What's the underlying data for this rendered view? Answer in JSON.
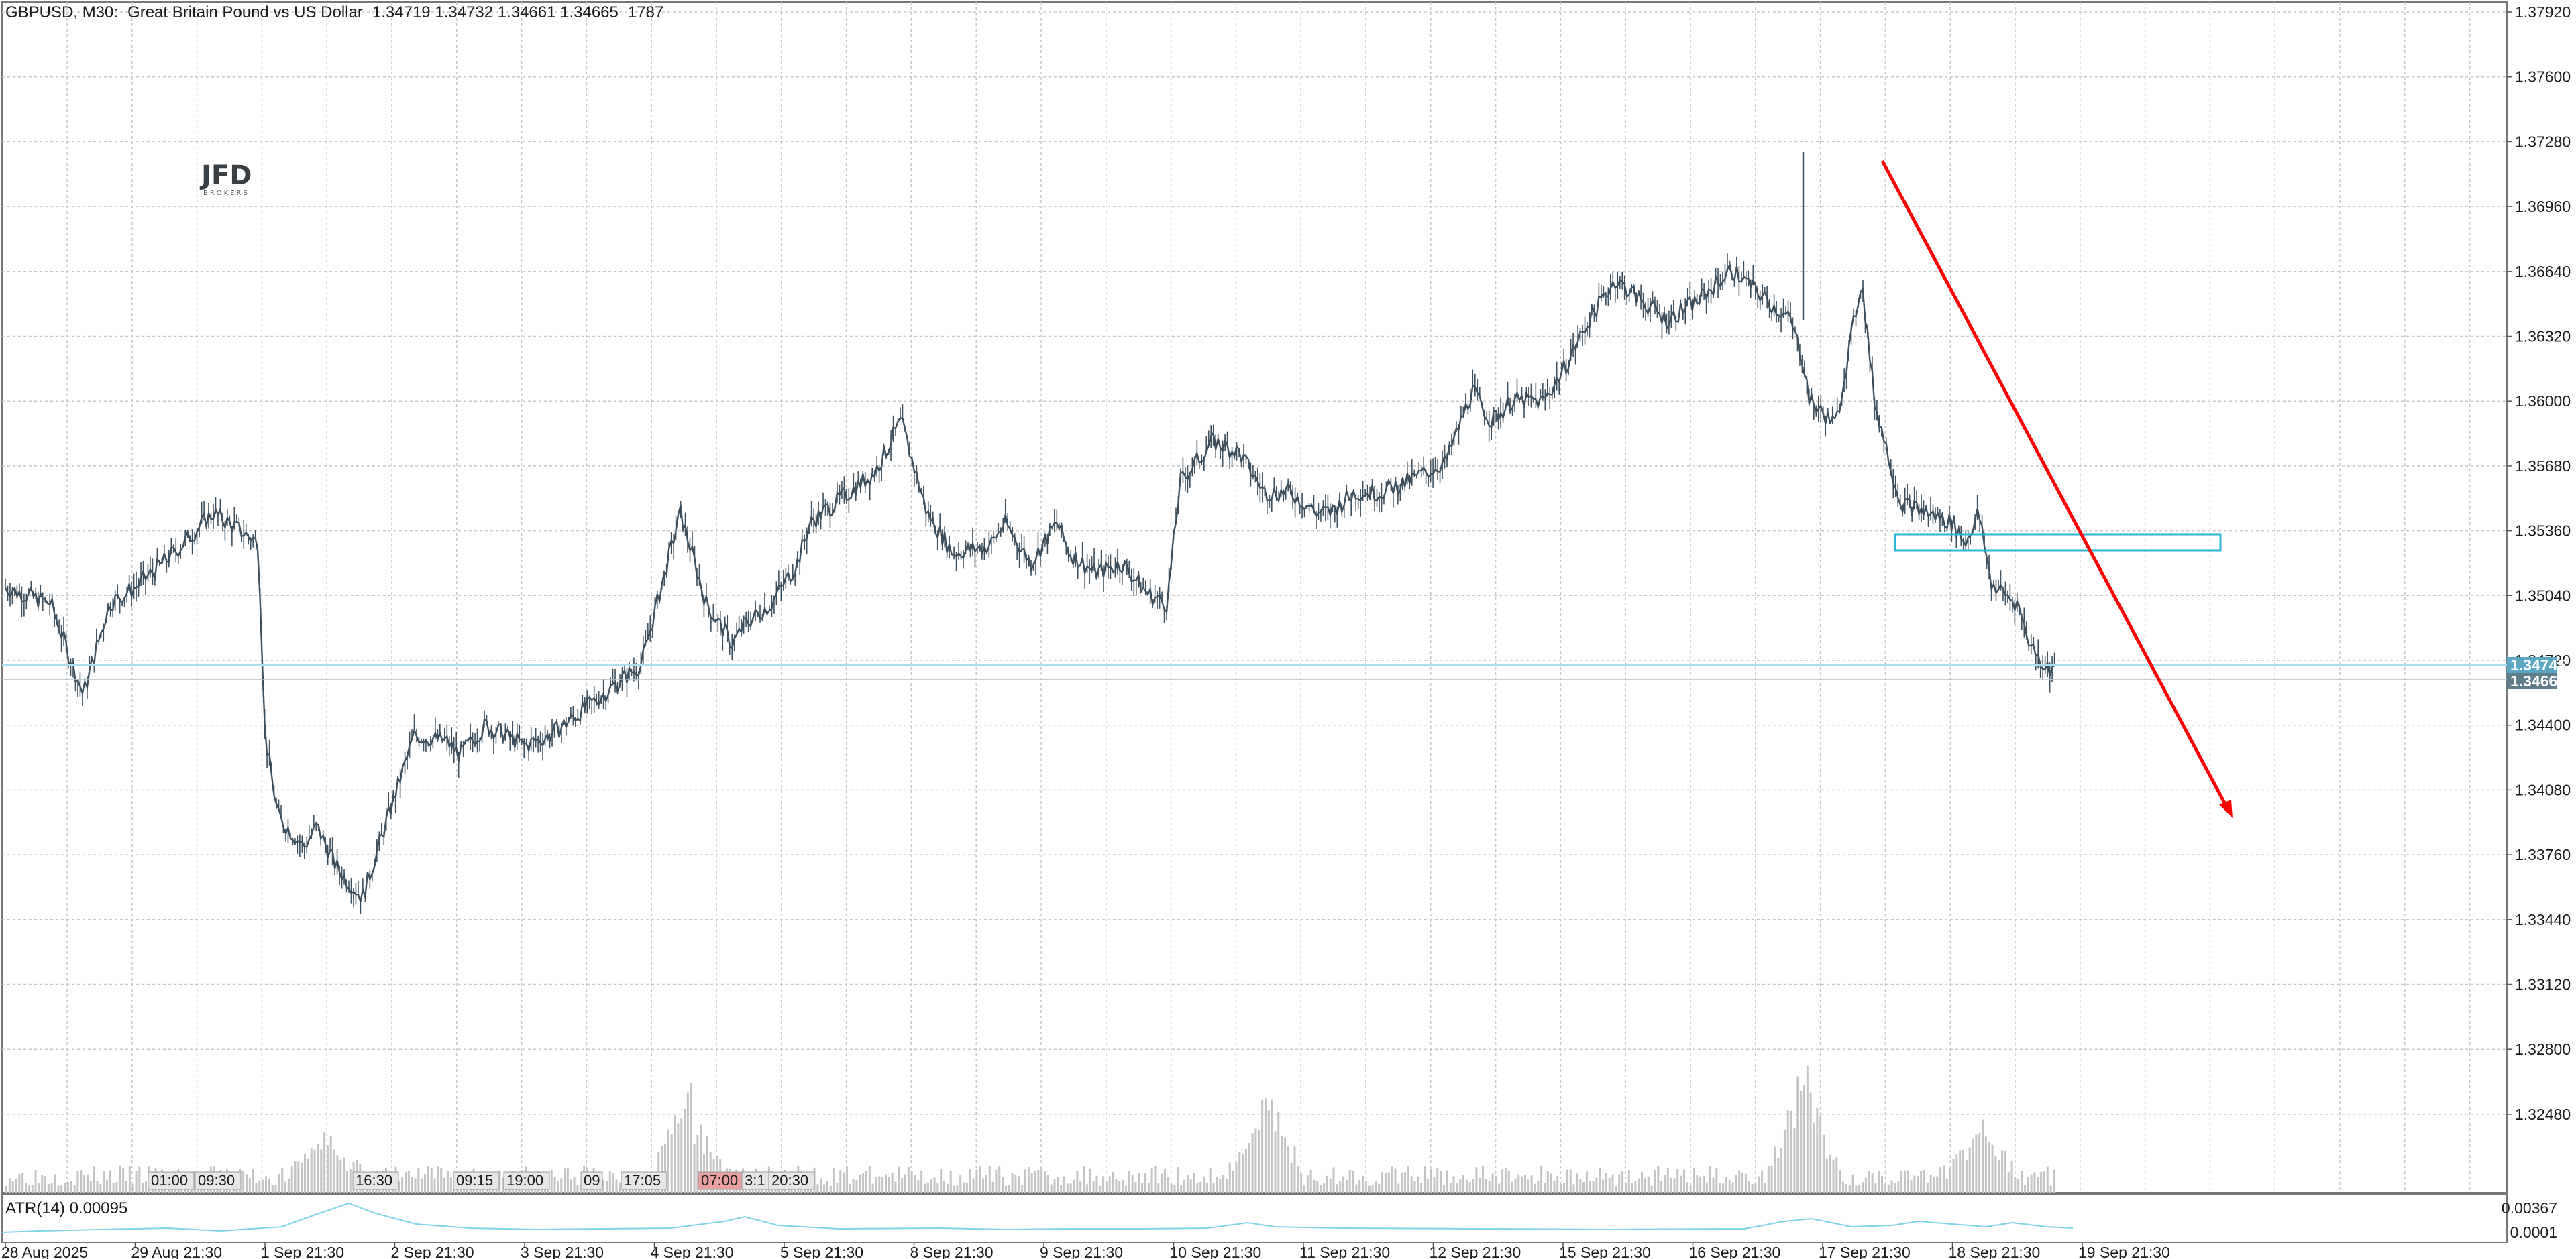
{
  "header": {
    "symbol_timeframe": "GBPUSD, M30:",
    "description": "Great Britain Pound vs US Dollar",
    "ohlc": "1.34719 1.34732 1.34661 1.34665",
    "count": "1787"
  },
  "logo": {
    "name": "JFD",
    "sub": "BROKERS"
  },
  "indicator": {
    "label": "ATR(14) 0.00095",
    "ticks": [
      "0.00367",
      "0.0001"
    ]
  },
  "colors": {
    "candles": "#3d4f5c",
    "volume": "#c4c4c4",
    "atr_line": "#7fd4e8",
    "price_line": "#a8dff0",
    "zone": "#29b6d6",
    "arrow": "#ff0000",
    "label_bid": "#5aa7c4",
    "label_last": "#607d8b"
  },
  "price_labels": {
    "bid": "1.34745",
    "last": "1.34665"
  },
  "session_markers": [
    {
      "text": "01:00",
      "highlight": false
    },
    {
      "text": "09:30",
      "highlight": false
    },
    {
      "text": "16:30",
      "highlight": false
    },
    {
      "text": "09:15",
      "highlight": false
    },
    {
      "text": "19:00",
      "highlight": false
    },
    {
      "text": "09",
      "highlight": false
    },
    {
      "text": "17:05",
      "highlight": false
    },
    {
      "text": "07:00",
      "highlight": true
    },
    {
      "text": "3:1",
      "highlight": false
    },
    {
      "text": "20:30",
      "highlight": false
    }
  ],
  "chart_data": {
    "type": "line",
    "title": "",
    "xlabel": "",
    "ylabel": "",
    "ylim": [
      1.3288,
      1.3808
    ],
    "y_ticks": [
      "1.37920",
      "1.37600",
      "1.37280",
      "1.36960",
      "1.36640",
      "1.36320",
      "1.36000",
      "1.35680",
      "1.35360",
      "1.35040",
      "1.34720",
      "1.34400",
      "1.34080",
      "1.33760",
      "1.33440",
      "1.33120",
      "1.32800",
      "1.32480"
    ],
    "x_ticks": [
      "28 Aug 2025",
      "29 Aug 21:30",
      "1 Sep 21:30",
      "2 Sep 21:30",
      "3 Sep 21:30",
      "4 Sep 21:30",
      "5 Sep 21:30",
      "8 Sep 21:30",
      "9 Sep 21:30",
      "10 Sep 21:30",
      "11 Sep 21:30",
      "12 Sep 21:30",
      "15 Sep 21:30",
      "16 Sep 21:30",
      "17 Sep 21:30",
      "18 Sep 21:30",
      "19 Sep 21:30"
    ],
    "grid": true,
    "series": [
      {
        "x": [
          0,
          0.35,
          0.6,
          0.8,
          1.0,
          1.3,
          1.6,
          1.95,
          2.0,
          2.1,
          2.3,
          2.4,
          2.55,
          2.75,
          3.0,
          3.15,
          3.4,
          3.5,
          3.7,
          4.0,
          4.2,
          4.5,
          4.9,
          5.2,
          5.4,
          5.6,
          5.7,
          5.9,
          6.1,
          6.2,
          6.5,
          6.7,
          6.9,
          7.1,
          7.3,
          7.55,
          7.6,
          7.7,
          7.9,
          8.05,
          8.1,
          8.2,
          8.4,
          8.6,
          8.8,
          8.95,
          9.05,
          9.3,
          9.5,
          9.7,
          9.9,
          10.1,
          10.2,
          10.4,
          10.6,
          10.8,
          11.1,
          11.3,
          11.45,
          11.6,
          11.85,
          12.0,
          12.2,
          12.4,
          12.6,
          12.8,
          13.05,
          13.3,
          13.6,
          13.75,
          13.85,
          13.9,
          14.1,
          14.3,
          14.4,
          14.6,
          14.8,
          15.0,
          15.1,
          15.2,
          15.3,
          15.5,
          15.6,
          15.7,
          15.8
        ],
        "values": [
          1.3508,
          1.35,
          1.3455,
          1.35,
          1.3508,
          1.3525,
          1.3545,
          1.353,
          1.3435,
          1.3395,
          1.338,
          1.339,
          1.337,
          1.3355,
          1.3405,
          1.3435,
          1.3432,
          1.3425,
          1.344,
          1.343,
          1.3435,
          1.345,
          1.347,
          1.3545,
          1.35,
          1.348,
          1.349,
          1.35,
          1.352,
          1.354,
          1.3555,
          1.3565,
          1.359,
          1.3545,
          1.3525,
          1.3528,
          1.353,
          1.354,
          1.352,
          1.3535,
          1.354,
          1.3525,
          1.3515,
          1.352,
          1.3505,
          1.35,
          1.356,
          1.358,
          1.3575,
          1.3555,
          1.3555,
          1.3545,
          1.3545,
          1.3555,
          1.3555,
          1.356,
          1.357,
          1.3605,
          1.359,
          1.36,
          1.36,
          1.3615,
          1.364,
          1.366,
          1.365,
          1.364,
          1.365,
          1.3665,
          1.3648,
          1.364,
          1.362,
          1.36,
          1.3588,
          1.366,
          1.36,
          1.355,
          1.3545,
          1.354,
          1.353,
          1.3545,
          1.351,
          1.35,
          1.348,
          1.347,
          1.3466
        ]
      }
    ]
  }
}
